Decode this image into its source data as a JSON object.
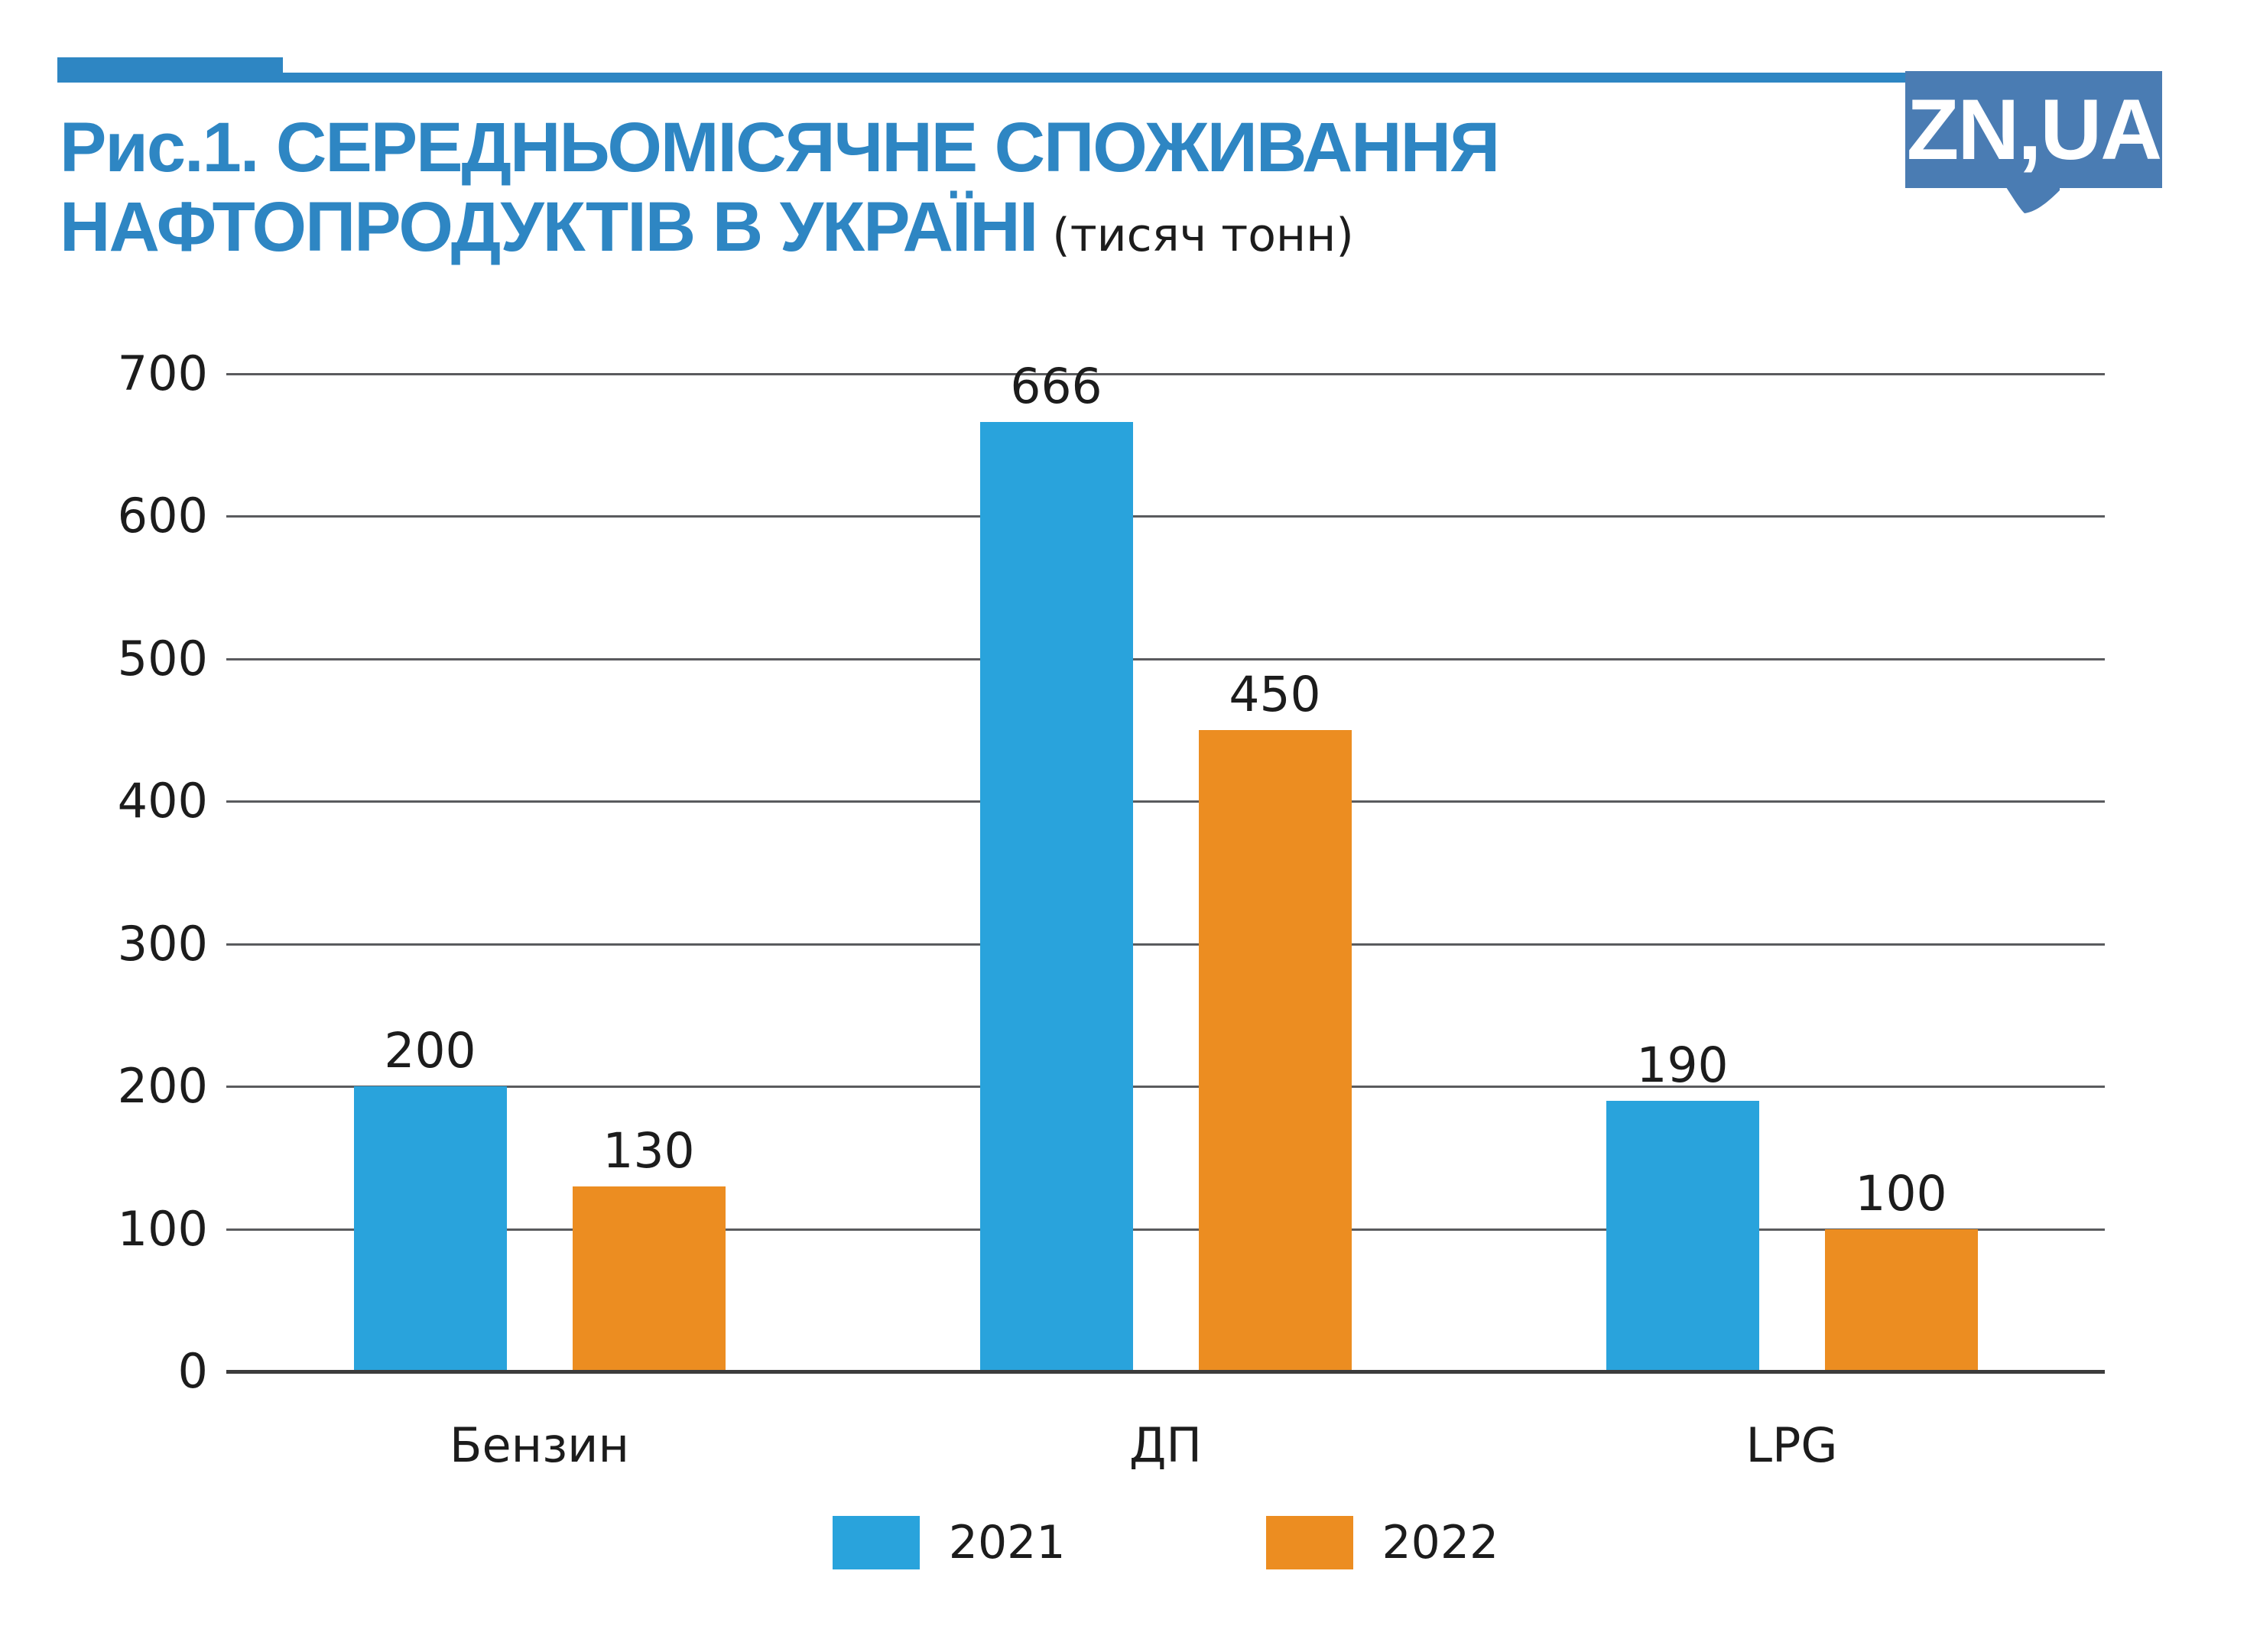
{
  "header": {
    "logo_text": "ZN,UA",
    "logo_color": "#4a7cb3",
    "accent_color": "#2e86c3"
  },
  "title": {
    "line1": "Рис.1. СЕРЕДНЬОМІСЯЧНЕ СПОЖИВАННЯ",
    "line2": "НАФТОПРОДУКТІВ В УКРАЇНІ",
    "units": "(тисяч тонн)"
  },
  "chart_data": {
    "type": "bar",
    "title": "Середньомісячне споживання нафтопродуктів в Україні (тисяч тонн)",
    "categories": [
      "Бензин",
      "ДП",
      "LPG"
    ],
    "series": [
      {
        "name": "2021",
        "color": "#29a3dc",
        "values": [
          200,
          666,
          190
        ]
      },
      {
        "name": "2022",
        "color": "#ec8d21",
        "values": [
          130,
          450,
          100
        ]
      }
    ],
    "ylim": [
      0,
      700
    ],
    "yticks": [
      0,
      100,
      200,
      300,
      400,
      500,
      600,
      700
    ],
    "grid": true,
    "legend_position": "bottom",
    "value_labels": true,
    "xlabel": "",
    "ylabel": ""
  }
}
